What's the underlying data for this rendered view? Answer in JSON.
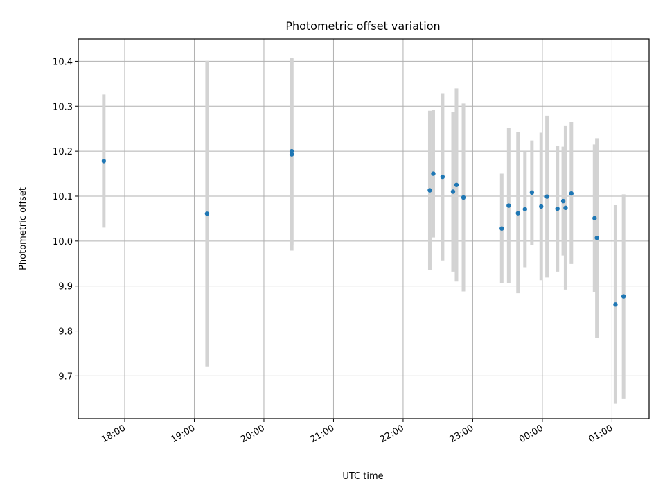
{
  "chart_data": {
    "type": "scatter",
    "title": "Photometric offset variation",
    "xlabel": "UTC time",
    "ylabel": "Photometric offset",
    "x_tick_labels": [
      "18:00",
      "19:00",
      "20:00",
      "21:00",
      "22:00",
      "23:00",
      "00:00",
      "01:00"
    ],
    "y_tick_labels": [
      "9.7",
      "9.8",
      "9.9",
      "10.0",
      "10.1",
      "10.2",
      "10.3",
      "10.4"
    ],
    "xlim": [
      "17:20",
      "01:32"
    ],
    "ylim": [
      9.605,
      10.45
    ],
    "grid": true,
    "legend": false,
    "marker_color": "#1f77b4",
    "errorbar_color": "#d3d3d3",
    "series": [
      {
        "points": [
          {
            "x": "17:42",
            "y": 10.178,
            "ylow": 10.03,
            "yhigh": 10.326
          },
          {
            "x": "19:11",
            "y": 10.061,
            "ylow": 9.721,
            "yhigh": 10.401
          },
          {
            "x": "20:24",
            "y": 10.2,
            "ylow": 9.992,
            "yhigh": 10.408
          },
          {
            "x": "20:24",
            "y": 10.193,
            "ylow": 9.979,
            "yhigh": 10.406
          },
          {
            "x": "22:23",
            "y": 10.113,
            "ylow": 9.936,
            "yhigh": 10.29
          },
          {
            "x": "22:26",
            "y": 10.15,
            "ylow": 10.008,
            "yhigh": 10.292
          },
          {
            "x": "22:34",
            "y": 10.143,
            "ylow": 9.957,
            "yhigh": 10.329
          },
          {
            "x": "22:43",
            "y": 10.11,
            "ylow": 9.932,
            "yhigh": 10.288
          },
          {
            "x": "22:46",
            "y": 10.125,
            "ylow": 9.91,
            "yhigh": 10.34
          },
          {
            "x": "22:52",
            "y": 10.097,
            "ylow": 9.888,
            "yhigh": 10.306
          },
          {
            "x": "23:25",
            "y": 10.028,
            "ylow": 9.906,
            "yhigh": 10.15
          },
          {
            "x": "23:31",
            "y": 10.079,
            "ylow": 9.906,
            "yhigh": 10.252
          },
          {
            "x": "23:39",
            "y": 10.062,
            "ylow": 9.884,
            "yhigh": 10.243
          },
          {
            "x": "23:45",
            "y": 10.071,
            "ylow": 9.942,
            "yhigh": 10.2
          },
          {
            "x": "23:51",
            "y": 10.108,
            "ylow": 9.992,
            "yhigh": 10.224
          },
          {
            "x": "23:59",
            "y": 10.077,
            "ylow": 9.913,
            "yhigh": 10.241
          },
          {
            "x": "00:04",
            "y": 10.099,
            "ylow": 9.919,
            "yhigh": 10.279
          },
          {
            "x": "00:13",
            "y": 10.072,
            "ylow": 9.932,
            "yhigh": 10.212
          },
          {
            "x": "00:18",
            "y": 10.089,
            "ylow": 9.968,
            "yhigh": 10.21
          },
          {
            "x": "00:20",
            "y": 10.074,
            "ylow": 9.892,
            "yhigh": 10.256
          },
          {
            "x": "00:25",
            "y": 10.106,
            "ylow": 9.949,
            "yhigh": 10.265
          },
          {
            "x": "00:45",
            "y": 10.051,
            "ylow": 9.887,
            "yhigh": 10.215
          },
          {
            "x": "00:47",
            "y": 10.007,
            "ylow": 9.785,
            "yhigh": 10.229
          },
          {
            "x": "01:03",
            "y": 9.859,
            "ylow": 9.638,
            "yhigh": 10.08
          },
          {
            "x": "01:10",
            "y": 9.877,
            "ylow": 9.65,
            "yhigh": 10.104
          }
        ]
      }
    ]
  }
}
